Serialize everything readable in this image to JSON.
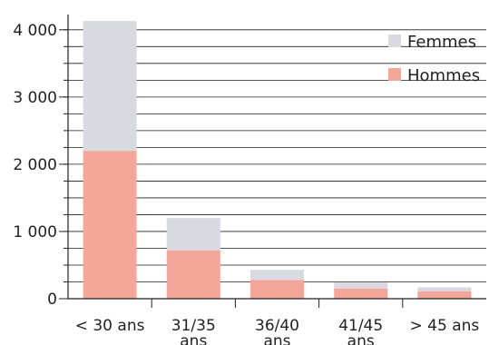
{
  "chart_data": {
    "type": "bar",
    "stacked": true,
    "categories": [
      "< 30 ans",
      "31/35\nans",
      "36/40\nans",
      "41/45\nans",
      "> 45 ans"
    ],
    "series": [
      {
        "name": "Hommes",
        "color": "#f4a69b",
        "values": [
          2200,
          720,
          280,
          150,
          110
        ]
      },
      {
        "name": "Femmes",
        "color": "#d9dadf",
        "values": [
          1930,
          480,
          150,
          90,
          60
        ]
      }
    ],
    "yticks": [
      {
        "value": 0,
        "label": "0"
      },
      {
        "value": 1000,
        "label": "1 000"
      },
      {
        "value": 2000,
        "label": "2 000"
      },
      {
        "value": 3000,
        "label": "3 000"
      },
      {
        "value": 4000,
        "label": "4 000"
      }
    ],
    "ylim": [
      0,
      4200
    ],
    "minor_step": 250,
    "grid": true,
    "legend_position": "top-right",
    "legend": [
      {
        "label": "Femmes",
        "color": "#d9dadf"
      },
      {
        "label": "Hommes",
        "color": "#f4a69b"
      }
    ],
    "title": "",
    "xlabel": "",
    "ylabel": ""
  }
}
